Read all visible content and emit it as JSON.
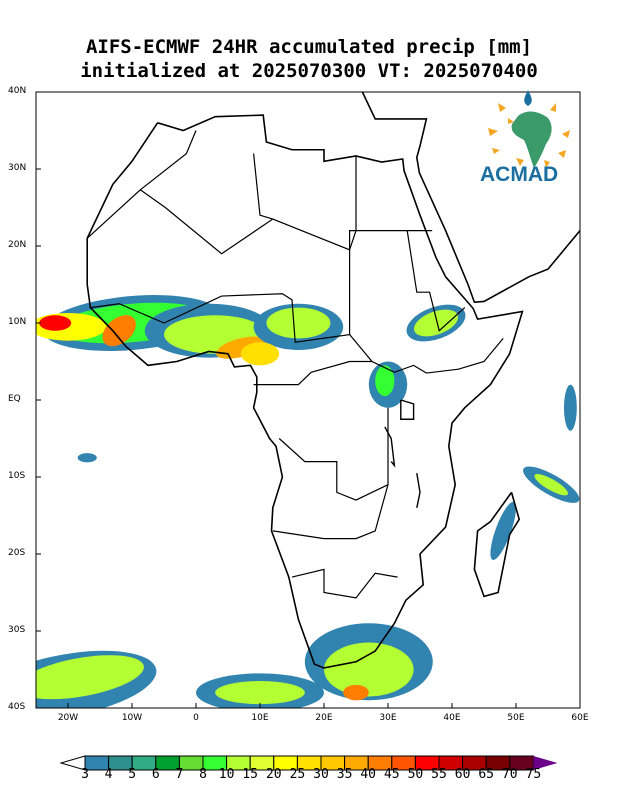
{
  "title": {
    "line1": "AIFS-ECMWF 24HR accumulated precip [mm]",
    "line2": "initialized at 2025070300 VT: 2025070400"
  },
  "lat_labels": [
    "40N",
    "30N",
    "20N",
    "10N",
    "EQ",
    "10S",
    "20S",
    "30S",
    "40S"
  ],
  "lon_labels": [
    "20W",
    "10W",
    "0",
    "10E",
    "20E",
    "30E",
    "40E",
    "50E",
    "60E"
  ],
  "logo": {
    "text": "ACMAD"
  },
  "colorbar": {
    "labels": [
      "3",
      "4",
      "5",
      "6",
      "7",
      "8",
      "10",
      "15",
      "20",
      "25",
      "30",
      "35",
      "40",
      "45",
      "50",
      "55",
      "60",
      "65",
      "70",
      "75"
    ],
    "colors": [
      "#3284b0",
      "#2f8e8e",
      "#31ab86",
      "#00a030",
      "#66dd33",
      "#33ff33",
      "#b4ff33",
      "#e0ff33",
      "#ffff00",
      "#ffe000",
      "#ffc800",
      "#ffaa00",
      "#ff7d00",
      "#ff5500",
      "#ff0000",
      "#d00000",
      "#aa0000",
      "#780000",
      "#680020"
    ],
    "over_color": "#6a008a"
  }
}
